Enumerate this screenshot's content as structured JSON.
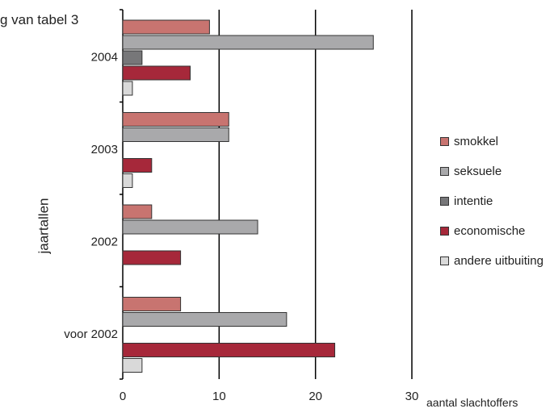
{
  "chart_data": {
    "type": "bar",
    "orientation": "horizontal",
    "title_fragment": "g van tabel 3",
    "ylabel": "jaartallen",
    "xlabel": "aantal slachtoffers",
    "categories": [
      "2004",
      "2003",
      "2002",
      "voor 2002"
    ],
    "xlim": [
      0,
      30
    ],
    "xticks": [
      "0",
      "10",
      "20",
      "30"
    ],
    "grid": true,
    "legend_position": "right",
    "series": [
      {
        "name": "smokkel",
        "color": "#c87470",
        "values": [
          9,
          11,
          3,
          6
        ]
      },
      {
        "name": "seksuele",
        "color": "#a9a9ab",
        "values": [
          26,
          11,
          14,
          17
        ]
      },
      {
        "name": "intentie",
        "color": "#777779",
        "values": [
          2,
          0,
          0,
          0
        ]
      },
      {
        "name": "economische",
        "color": "#a6283a",
        "values": [
          7,
          3,
          6,
          22
        ]
      },
      {
        "name": "andere uitbuiting",
        "color": "#d9d9d9",
        "values": [
          1,
          1,
          0,
          2
        ]
      }
    ]
  }
}
